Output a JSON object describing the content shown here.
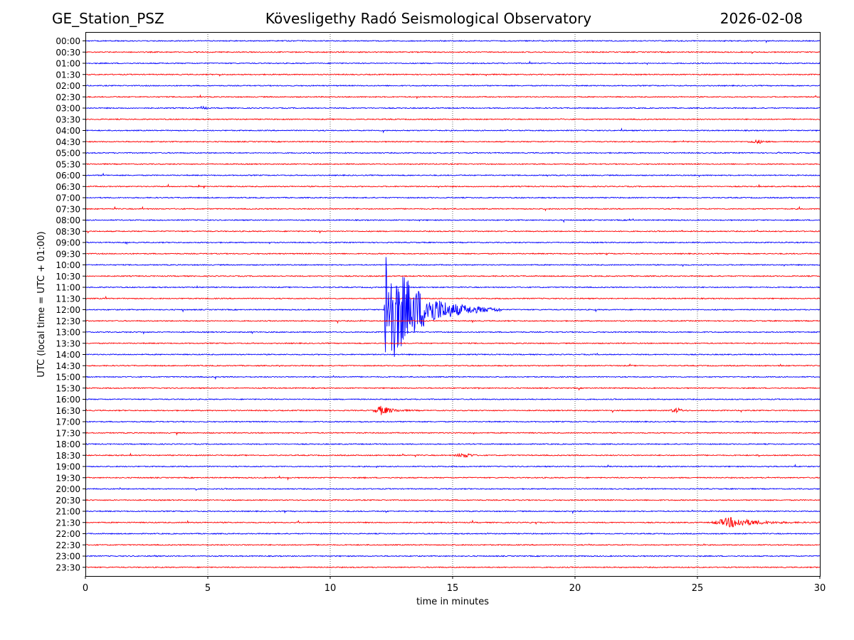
{
  "header": {
    "station": "GE_Station_PSZ",
    "observatory": "Kövesligethy Radó Seismological Observatory",
    "date": "2026-02-08"
  },
  "colors": {
    "trace_even": "#0000ff",
    "trace_odd": "#ff0000",
    "grid": "#000000",
    "axes": "#000000",
    "background": "#ffffff"
  },
  "chart_data": {
    "type": "line",
    "subtype": "helicorder",
    "xlabel": "time in minutes",
    "ylabel": "UTC (local time = UTC + 01:00)",
    "xlim": [
      0,
      30
    ],
    "x_ticks": [
      0,
      5,
      10,
      15,
      20,
      25,
      30
    ],
    "grid": "vertical dotted lines at x ticks",
    "row_labels": [
      "00:00",
      "00:30",
      "01:00",
      "01:30",
      "02:00",
      "02:30",
      "03:00",
      "03:30",
      "04:00",
      "04:30",
      "05:00",
      "05:30",
      "06:00",
      "06:30",
      "07:00",
      "07:30",
      "08:00",
      "08:30",
      "09:00",
      "09:30",
      "10:00",
      "10:30",
      "11:00",
      "11:30",
      "12:00",
      "12:30",
      "13:00",
      "13:30",
      "14:00",
      "14:30",
      "15:00",
      "15:30",
      "16:00",
      "16:30",
      "17:00",
      "17:30",
      "18:00",
      "18:30",
      "19:00",
      "19:30",
      "20:00",
      "20:30",
      "21:00",
      "21:30",
      "22:00",
      "22:30",
      "23:00",
      "23:30"
    ],
    "trace_colors": "alternating blue (full hours) and red (half hours)",
    "events": [
      {
        "row": "12:00",
        "start_min": 12.2,
        "end_min": 17.0,
        "peak_min": 12.25,
        "peak_amplitude_rows": 5.8,
        "color": "blue"
      },
      {
        "row": "16:30",
        "start_min": 11.7,
        "end_min": 13.7,
        "peak_min": 12.1,
        "peak_amplitude_rows": 0.4,
        "color": "red"
      },
      {
        "row": "16:30",
        "start_min": 23.8,
        "end_min": 24.8,
        "peak_min": 24.2,
        "peak_amplitude_rows": 0.2,
        "color": "red"
      },
      {
        "row": "18:30",
        "start_min": 15.0,
        "end_min": 16.3,
        "peak_min": 15.6,
        "peak_amplitude_rows": 0.2,
        "color": "red"
      },
      {
        "row": "21:30",
        "start_min": 25.5,
        "end_min": 30.0,
        "peak_min": 26.4,
        "peak_amplitude_rows": 0.45,
        "color": "red"
      },
      {
        "row": "04:30",
        "start_min": 27.0,
        "end_min": 28.2,
        "peak_min": 27.5,
        "peak_amplitude_rows": 0.15,
        "color": "red"
      },
      {
        "row": "03:00",
        "start_min": 4.6,
        "end_min": 5.0,
        "peak_min": 4.8,
        "peak_amplitude_rows": 0.15,
        "color": "blue"
      }
    ]
  }
}
